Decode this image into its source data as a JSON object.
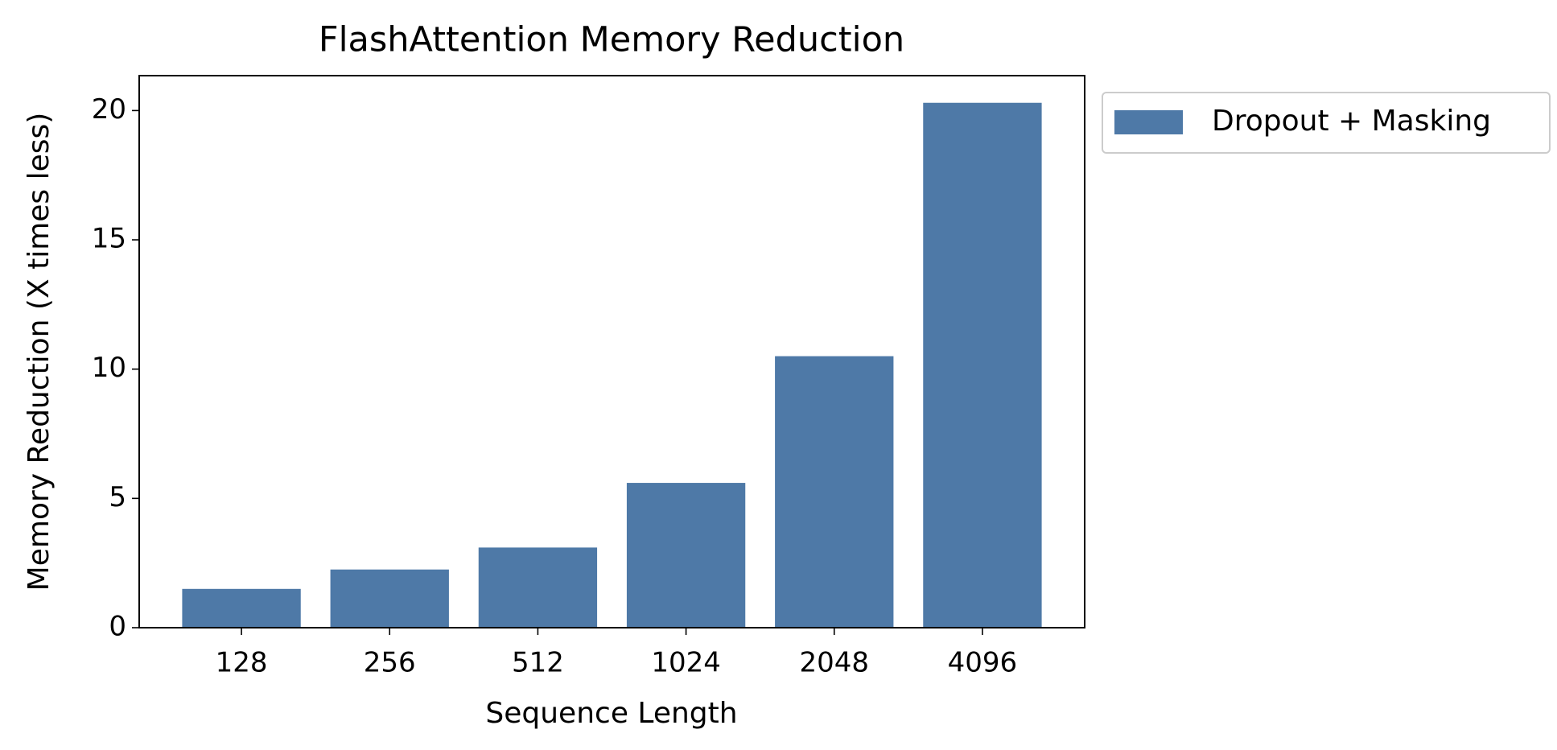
{
  "chart_data": {
    "type": "bar",
    "title": "FlashAttention Memory Reduction",
    "x_label": "Sequence Length",
    "y_label": "Memory Reduction (X times less)",
    "categories": [
      "128",
      "256",
      "512",
      "1024",
      "2048",
      "4096"
    ],
    "series": [
      {
        "name": "Dropout + Masking",
        "color": "#4e79a7",
        "values": [
          1.5,
          2.25,
          3.1,
          5.6,
          10.5,
          20.3
        ]
      }
    ],
    "ylim": [
      0,
      21.35
    ],
    "yticks": [
      0,
      5,
      10,
      15,
      20
    ],
    "grid": false,
    "legend": "outside upper right"
  }
}
